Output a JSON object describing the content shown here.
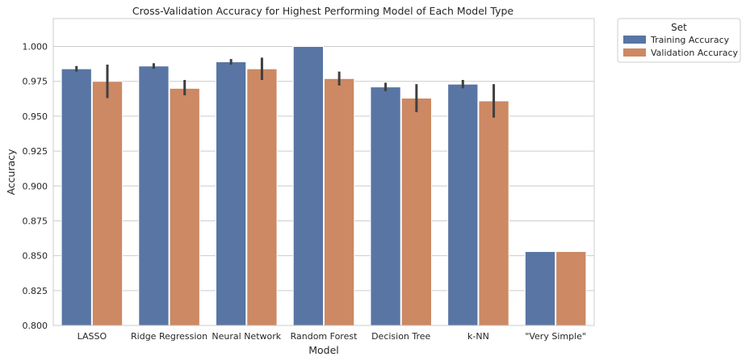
{
  "chart_data": {
    "type": "bar",
    "title": "Cross-Validation Accuracy for Highest Performing Model of Each Model Type",
    "xlabel": "Model",
    "ylabel": "Accuracy",
    "ylim": [
      0.8,
      1.02
    ],
    "yticks": [
      "0.800",
      "0.825",
      "0.850",
      "0.875",
      "0.900",
      "0.925",
      "0.950",
      "0.975",
      "1.000"
    ],
    "grid": "horizontal",
    "categories": [
      "LASSO",
      "Ridge Regression",
      "Neural Network",
      "Random Forest",
      "Decision Tree",
      "k-NN",
      "\"Very Simple\""
    ],
    "series": [
      {
        "name": "Training Accuracy",
        "color": "#5875a4",
        "values": [
          0.984,
          0.986,
          0.989,
          1.0,
          0.971,
          0.973,
          0.853
        ],
        "error_low": [
          0.982,
          0.984,
          0.987,
          null,
          0.968,
          0.97,
          null
        ],
        "error_high": [
          0.986,
          0.988,
          0.991,
          null,
          0.974,
          0.976,
          null
        ]
      },
      {
        "name": "Validation Accuracy",
        "color": "#cc8963",
        "values": [
          0.975,
          0.97,
          0.984,
          0.977,
          0.963,
          0.961,
          0.853
        ],
        "error_low": [
          0.963,
          0.965,
          0.976,
          0.972,
          0.953,
          0.949,
          null
        ],
        "error_high": [
          0.987,
          0.976,
          0.992,
          0.982,
          0.973,
          0.973,
          null
        ]
      }
    ],
    "legend": {
      "title": "Set",
      "placement": "outside-top-right"
    }
  }
}
